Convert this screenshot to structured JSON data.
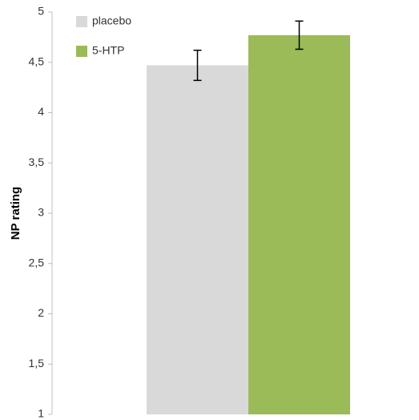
{
  "chart_data": {
    "type": "bar",
    "y_label": "NP rating",
    "categories": [
      null
    ],
    "series": [
      {
        "name": "placebo",
        "color": "#d9d9d9",
        "values": [
          4.47
        ],
        "errors": [
          0.15
        ]
      },
      {
        "name": "5-HTP",
        "color": "#9bbb59",
        "values": [
          4.77
        ],
        "errors": [
          0.14
        ]
      }
    ],
    "ylim": [
      1,
      5
    ],
    "yticks": [
      1,
      {
        "value": 1.5,
        "label": "1,5"
      },
      2,
      {
        "value": 2.5,
        "label": "2,5"
      },
      3,
      {
        "value": 3.5,
        "label": "3,5"
      },
      4,
      {
        "value": 4.5,
        "label": "4,5"
      },
      5
    ],
    "grid": false,
    "legend": "top-left"
  }
}
